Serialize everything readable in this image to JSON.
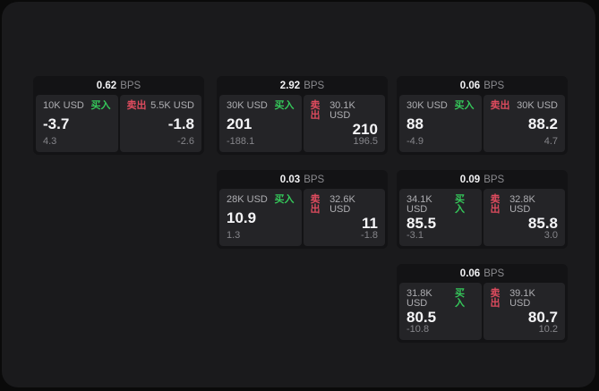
{
  "colors": {
    "window_bg": "#1a1a1c",
    "card_bg": "#131315",
    "panel_bg": "#242427",
    "buy_green": "#35c75a",
    "sell_red": "#dd4b5e"
  },
  "cards": [
    {
      "header": {
        "value": "0.62",
        "unit": "BPS"
      },
      "buy": {
        "amount": "10K USD",
        "side_label": "买入",
        "price": "-3.7",
        "delta": "4.3"
      },
      "sell": {
        "amount": "5.5K USD",
        "side_label": "卖出",
        "price": "-1.8",
        "delta": "-2.6"
      }
    },
    {
      "header": {
        "value": "2.92",
        "unit": "BPS"
      },
      "buy": {
        "amount": "30K USD",
        "side_label": "买入",
        "price": "201",
        "delta": "-188.1"
      },
      "sell": {
        "amount": "30.1K USD",
        "side_label": "卖出",
        "price": "210",
        "delta": "196.5"
      }
    },
    {
      "header": {
        "value": "0.06",
        "unit": "BPS"
      },
      "buy": {
        "amount": "30K USD",
        "side_label": "买入",
        "price": "88",
        "delta": "-4.9"
      },
      "sell": {
        "amount": "30K USD",
        "side_label": "卖出",
        "price": "88.2",
        "delta": "4.7"
      }
    },
    {
      "header": {
        "value": "0.03",
        "unit": "BPS"
      },
      "buy": {
        "amount": "28K USD",
        "side_label": "买入",
        "price": "10.9",
        "delta": "1.3"
      },
      "sell": {
        "amount": "32.6K USD",
        "side_label": "卖出",
        "price": "11",
        "delta": "-1.8"
      }
    },
    {
      "header": {
        "value": "0.09",
        "unit": "BPS"
      },
      "buy": {
        "amount": "34.1K USD",
        "side_label": "买入",
        "price": "85.5",
        "delta": "-3.1"
      },
      "sell": {
        "amount": "32.8K USD",
        "side_label": "卖出",
        "price": "85.8",
        "delta": "3.0"
      }
    },
    {
      "header": {
        "value": "0.06",
        "unit": "BPS"
      },
      "buy": {
        "amount": "31.8K USD",
        "side_label": "买入",
        "price": "80.5",
        "delta": "-10.8"
      },
      "sell": {
        "amount": "39.1K USD",
        "side_label": "卖出",
        "price": "80.7",
        "delta": "10.2"
      }
    }
  ]
}
